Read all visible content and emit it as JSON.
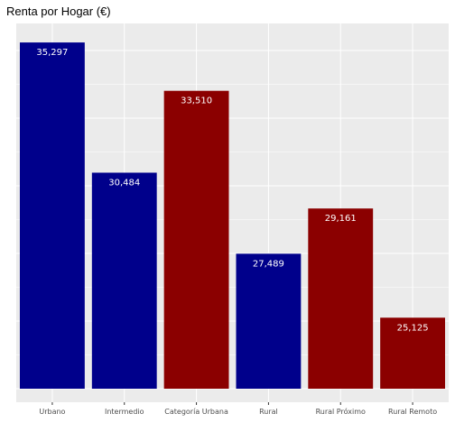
{
  "chart_data": {
    "type": "bar",
    "title": "Renta por Hogar (€)",
    "xlabel": "",
    "ylabel": "",
    "categories": [
      "Urbano",
      "Intermedio",
      "Categoría Urbana",
      "Rural",
      "Rural Próximo",
      "Rural Remoto"
    ],
    "values": [
      35297,
      30484,
      33510,
      27489,
      29161,
      25125
    ],
    "value_labels": [
      "35,297",
      "30,484",
      "33,510",
      "27,489",
      "29,161",
      "25,125"
    ],
    "bar_colors": [
      "#00008b",
      "#00008b",
      "#8b0000",
      "#00008b",
      "#8b0000",
      "#8b0000"
    ],
    "ylim": [
      22000,
      36000
    ],
    "y_gridlines": [
      22500,
      25000,
      27500,
      30000,
      32500,
      35000
    ],
    "y_tick_labels_shown": false,
    "grid": true,
    "legend": "none",
    "colors": {
      "panel_background": "#ebebeb",
      "grid": "#ffffff",
      "data_label": "#ffffff"
    }
  }
}
